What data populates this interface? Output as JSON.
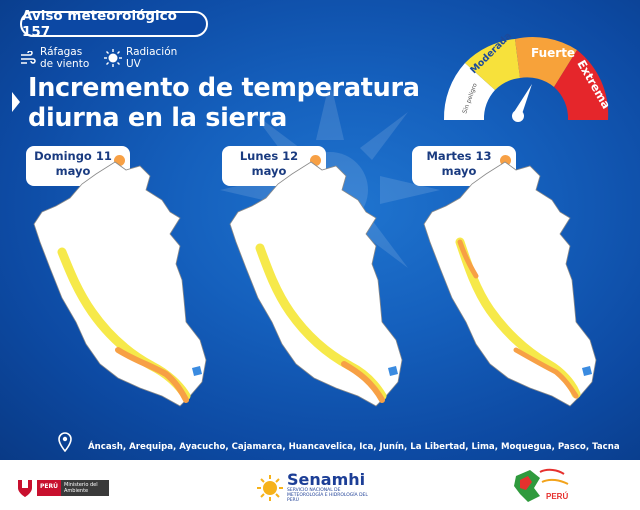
{
  "badge": {
    "label": "Aviso meteorológico 157"
  },
  "legend": [
    {
      "icon": "wind-gusts-icon",
      "label": "Ráfagas de viento"
    },
    {
      "icon": "uv-radiation-icon",
      "label": "Radiación UV"
    }
  ],
  "title": {
    "line1": "Incremento de temperatura",
    "line2": "diurna en la sierra"
  },
  "gauge": {
    "levels": [
      {
        "label": "Sin peligro",
        "color": "#ffffff"
      },
      {
        "label": "Moderada",
        "color": "#f7e13b"
      },
      {
        "label": "Fuerte",
        "color": "#f7a23a"
      },
      {
        "label": "Extrema",
        "color": "#e5262b"
      }
    ],
    "active_level": "Fuerte"
  },
  "days": [
    {
      "day": "Domingo 11",
      "month": "mayo"
    },
    {
      "day": "Lunes 12",
      "month": "mayo"
    },
    {
      "day": "Martes 13",
      "month": "mayo"
    }
  ],
  "warning_color": "#f7a045",
  "alert_color": "#f6e94a",
  "regions": "Áncash, Arequipa, Ayacucho, Cajamarca, Huancavelica, Ica, Junín, La Libertad, Lima, Moquegua, Pasco, Tacna",
  "footer": {
    "ministry_country": "PERÚ",
    "ministry_name": "Ministerio del Ambiente",
    "senamhi_name": "Senamhi",
    "senamhi_sub": "SERVICIO NACIONAL DE METEOROLOGÍA E HIDROLOGÍA DEL PERÚ",
    "peru_text": "PERÚ"
  }
}
